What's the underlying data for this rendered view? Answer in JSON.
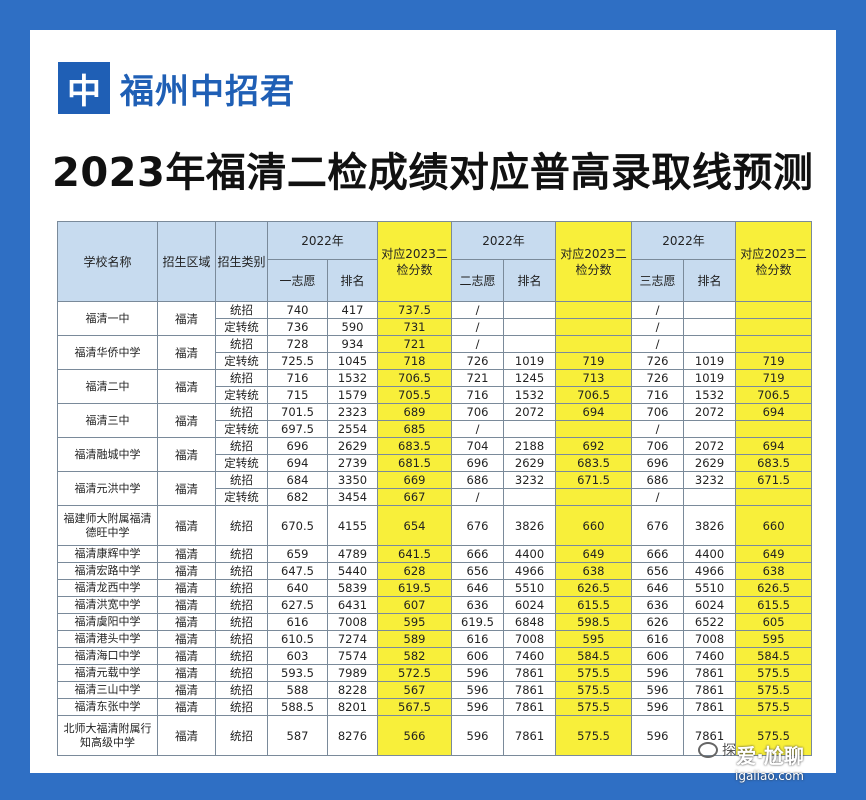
{
  "brand": {
    "logo_char": "中",
    "name": "福州中招君"
  },
  "title": "2023年福清二检成绩对应普高录取线预测",
  "headers": {
    "school": "学校名称",
    "area": "招生区域",
    "type": "招生类别",
    "year_2022": "2022年",
    "corr_2023": "对应2023二检分数",
    "first": "一志愿",
    "second": "二志愿",
    "third": "三志愿",
    "rank": "排名"
  },
  "rows": [
    {
      "school": "福清一中",
      "area": "福清",
      "types": [
        [
          "统招",
          "740",
          "417",
          "737.5",
          "/",
          "",
          "",
          "/",
          "",
          ""
        ],
        [
          "定转统",
          "736",
          "590",
          "731",
          "/",
          "",
          "",
          "/",
          "",
          ""
        ]
      ]
    },
    {
      "school": "福清华侨中学",
      "area": "福清",
      "types": [
        [
          "统招",
          "728",
          "934",
          "721",
          "/",
          "",
          "",
          "/",
          "",
          ""
        ],
        [
          "定转统",
          "725.5",
          "1045",
          "718",
          "726",
          "1019",
          "719",
          "726",
          "1019",
          "719"
        ]
      ]
    },
    {
      "school": "福清二中",
      "area": "福清",
      "types": [
        [
          "统招",
          "716",
          "1532",
          "706.5",
          "721",
          "1245",
          "713",
          "726",
          "1019",
          "719"
        ],
        [
          "定转统",
          "715",
          "1579",
          "705.5",
          "716",
          "1532",
          "706.5",
          "716",
          "1532",
          "706.5"
        ]
      ]
    },
    {
      "school": "福清三中",
      "area": "福清",
      "types": [
        [
          "统招",
          "701.5",
          "2323",
          "689",
          "706",
          "2072",
          "694",
          "706",
          "2072",
          "694"
        ],
        [
          "定转统",
          "697.5",
          "2554",
          "685",
          "/",
          "",
          "",
          "/",
          "",
          ""
        ]
      ]
    },
    {
      "school": "福清融城中学",
      "area": "福清",
      "types": [
        [
          "统招",
          "696",
          "2629",
          "683.5",
          "704",
          "2188",
          "692",
          "706",
          "2072",
          "694"
        ],
        [
          "定转统",
          "694",
          "2739",
          "681.5",
          "696",
          "2629",
          "683.5",
          "696",
          "2629",
          "683.5"
        ]
      ]
    },
    {
      "school": "福清元洪中学",
      "area": "福清",
      "types": [
        [
          "统招",
          "684",
          "3350",
          "669",
          "686",
          "3232",
          "671.5",
          "686",
          "3232",
          "671.5"
        ],
        [
          "定转统",
          "682",
          "3454",
          "667",
          "/",
          "",
          "",
          "/",
          "",
          ""
        ]
      ]
    },
    {
      "school": "福建师大附属福清德旺中学",
      "area": "福清",
      "tall": true,
      "types": [
        [
          "统招",
          "670.5",
          "4155",
          "654",
          "676",
          "3826",
          "660",
          "676",
          "3826",
          "660"
        ]
      ]
    },
    {
      "school": "福清康辉中学",
      "area": "福清",
      "types": [
        [
          "统招",
          "659",
          "4789",
          "641.5",
          "666",
          "4400",
          "649",
          "666",
          "4400",
          "649"
        ]
      ]
    },
    {
      "school": "福清宏路中学",
      "area": "福清",
      "types": [
        [
          "统招",
          "647.5",
          "5440",
          "628",
          "656",
          "4966",
          "638",
          "656",
          "4966",
          "638"
        ]
      ]
    },
    {
      "school": "福清龙西中学",
      "area": "福清",
      "types": [
        [
          "统招",
          "640",
          "5839",
          "619.5",
          "646",
          "5510",
          "626.5",
          "646",
          "5510",
          "626.5"
        ]
      ]
    },
    {
      "school": "福清洪宽中学",
      "area": "福清",
      "types": [
        [
          "统招",
          "627.5",
          "6431",
          "607",
          "636",
          "6024",
          "615.5",
          "636",
          "6024",
          "615.5"
        ]
      ]
    },
    {
      "school": "福清虞阳中学",
      "area": "福清",
      "types": [
        [
          "统招",
          "616",
          "7008",
          "595",
          "619.5",
          "6848",
          "598.5",
          "626",
          "6522",
          "605"
        ]
      ]
    },
    {
      "school": "福清港头中学",
      "area": "福清",
      "types": [
        [
          "统招",
          "610.5",
          "7274",
          "589",
          "616",
          "7008",
          "595",
          "616",
          "7008",
          "595"
        ]
      ]
    },
    {
      "school": "福清海口中学",
      "area": "福清",
      "types": [
        [
          "统招",
          "603",
          "7574",
          "582",
          "606",
          "7460",
          "584.5",
          "606",
          "7460",
          "584.5"
        ]
      ]
    },
    {
      "school": "福清元载中学",
      "area": "福清",
      "types": [
        [
          "统招",
          "593.5",
          "7989",
          "572.5",
          "596",
          "7861",
          "575.5",
          "596",
          "7861",
          "575.5"
        ]
      ]
    },
    {
      "school": "福清三山中学",
      "area": "福清",
      "types": [
        [
          "统招",
          "588",
          "8228",
          "567",
          "596",
          "7861",
          "575.5",
          "596",
          "7861",
          "575.5"
        ]
      ]
    },
    {
      "school": "福清东张中学",
      "area": "福清",
      "types": [
        [
          "统招",
          "588.5",
          "8201",
          "567.5",
          "596",
          "7861",
          "575.5",
          "596",
          "7861",
          "575.5"
        ]
      ]
    },
    {
      "school": "北师大福清附属行知高级中学",
      "area": "福清",
      "tall": true,
      "types": [
        [
          "统招",
          "587",
          "8276",
          "566",
          "596",
          "7861",
          "575.5",
          "596",
          "7861",
          "575.5"
        ]
      ]
    }
  ],
  "footer": {
    "text": "探",
    "site_line1": "爱·尬聊",
    "site_line2": "igaliao.com"
  }
}
